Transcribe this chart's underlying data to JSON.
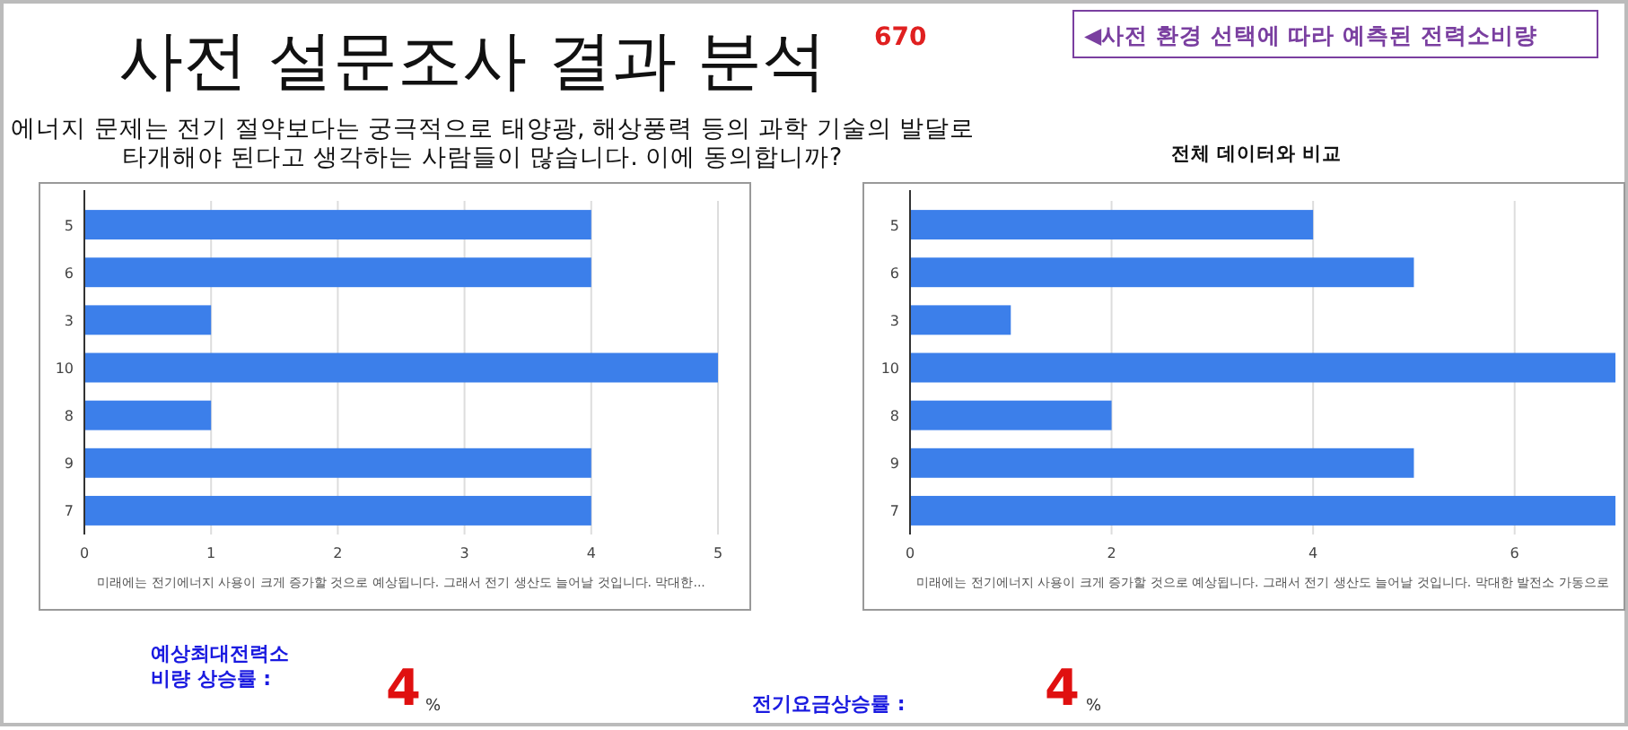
{
  "chart_data": [
    {
      "type": "bar",
      "orientation": "horizontal",
      "title": "사전 설문조사 결과 분석",
      "subtitle": "에너지 문제는 전기 절약보다는 궁극적으로 태양광, 해상풍력 등의 과학 기술의 발달로 타개해야 된다고 생각하는 사람들이 많습니다. 이에 동의합니까?",
      "annotations": [
        "670",
        "◀사전 환경 선택에 따라 예측된 전력소비량"
      ],
      "xlabel": "미래에는 전기에너지 사용이 크게 증가할 것으로 예상됩니다. 그래서 전기 생산도 늘어날 것입니다. 막대한...",
      "categories": [
        "5",
        "6",
        "3",
        "10",
        "8",
        "9",
        "7"
      ],
      "values": [
        4,
        4,
        1,
        5,
        1,
        4,
        4
      ],
      "color": "#3c7fea",
      "xlim": [
        0,
        5
      ],
      "xticks": [
        0,
        1,
        2,
        3,
        4,
        5
      ],
      "grid": "x"
    },
    {
      "type": "bar",
      "orientation": "horizontal",
      "title": "전체 데이터와 비교",
      "xlabel": "미래에는 전기에너지 사용이 크게 증가할 것으로 예상됩니다. 그래서 전기 생산도 늘어날 것입니다. 막대한 발전소 가동으로",
      "categories": [
        "5",
        "6",
        "3",
        "10",
        "8",
        "9",
        "7"
      ],
      "values": [
        4,
        5,
        1,
        7,
        2,
        5,
        7
      ],
      "color": "#3c7fea",
      "xlim": [
        0,
        7
      ],
      "xticks": [
        0,
        2,
        4,
        6
      ],
      "grid": "x"
    },
    {
      "type": "other",
      "annotations": [
        "예상최대전력소 비량 상승률 :",
        "4",
        "%",
        "전기요금상승률 :",
        "4",
        "%"
      ]
    }
  ]
}
